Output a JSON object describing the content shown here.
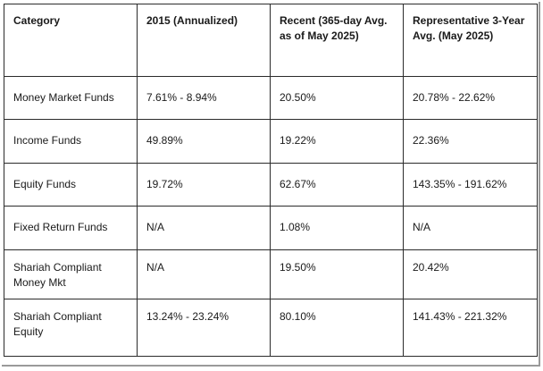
{
  "table": {
    "headers": [
      "Category",
      "2015 (Annualized)",
      "Recent (365-day Avg. as of May 2025)",
      "Representative 3-Year Avg. (May 2025)"
    ],
    "rows": [
      [
        "Money Market Funds",
        "7.61% - 8.94%",
        "20.50%",
        "20.78% - 22.62%"
      ],
      [
        "Income Funds",
        "49.89%",
        "19.22%",
        "22.36%"
      ],
      [
        "Equity Funds",
        "19.72%",
        "62.67%",
        "143.35% - 191.62%"
      ],
      [
        "Fixed Return Funds",
        "N/A",
        "1.08%",
        "N/A"
      ],
      [
        "Shariah Compliant Money Mkt",
        "N/A",
        "19.50%",
        "20.42%"
      ],
      [
        "Shariah Compliant Equity",
        "13.24% - 23.24%",
        "80.10%",
        "141.43% - 221.32%"
      ]
    ]
  }
}
